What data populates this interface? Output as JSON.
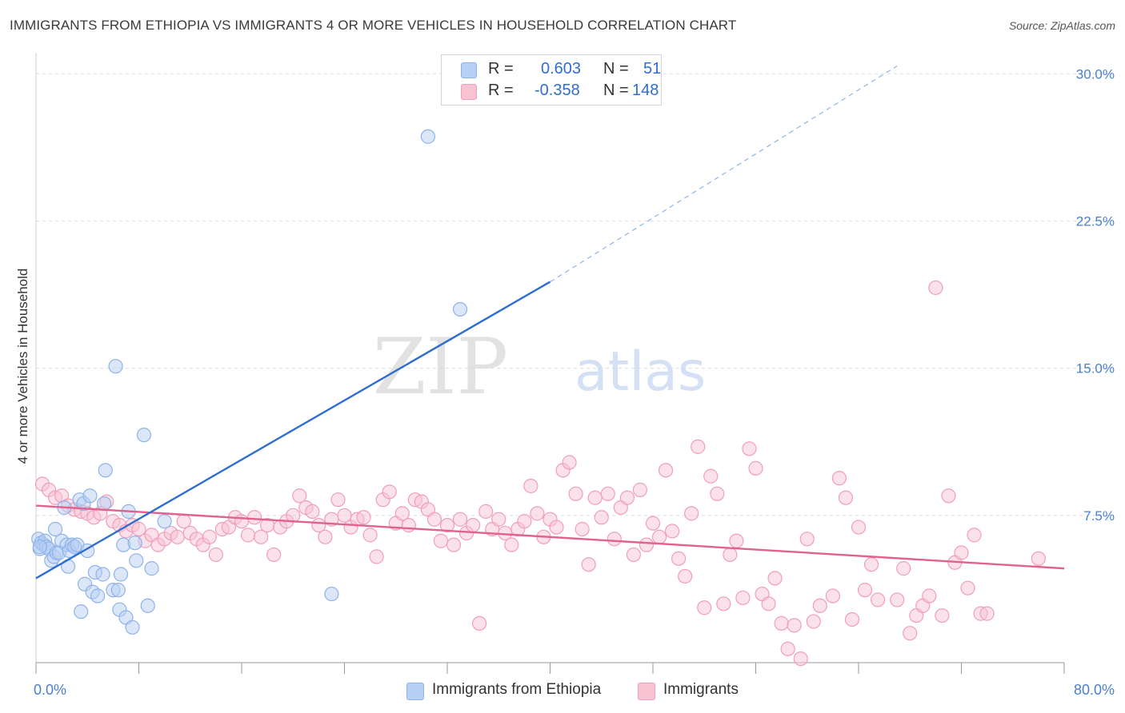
{
  "title": "IMMIGRANTS FROM ETHIOPIA VS IMMIGRANTS 4 OR MORE VEHICLES IN HOUSEHOLD CORRELATION CHART",
  "source": "Source: ZipAtlas.com",
  "watermark": {
    "zip": "ZIP",
    "atlas": "atlas"
  },
  "legend": {
    "rows": [
      {
        "r_label": "R =",
        "r_value": "0.603",
        "n_label": "N =",
        "n_value": "51"
      },
      {
        "r_label": "R =",
        "r_value": "-0.358",
        "n_label": "N =",
        "n_value": "148"
      }
    ]
  },
  "bottom_legend": [
    "Immigrants from Ethiopia",
    "Immigrants"
  ],
  "colors": {
    "blue_fill": "#b8d0f3",
    "blue_stroke": "#8fb3e8",
    "blue_line": "#2f6ed1",
    "pink_fill": "#f7c3d3",
    "pink_stroke": "#ef9fb9",
    "pink_line": "#e0628d",
    "grid": "#dcdcdc",
    "tick_label": "#4a7fd0"
  },
  "chart_data": {
    "type": "scatter",
    "title": "IMMIGRANTS FROM ETHIOPIA VS IMMIGRANTS 4 OR MORE VEHICLES IN HOUSEHOLD CORRELATION CHART",
    "xlabel": "",
    "ylabel": "4 or more Vehicles in Household",
    "xlim": [
      0,
      80
    ],
    "ylim": [
      0,
      30.5
    ],
    "x_tick_labels": [
      "0.0%",
      "80.0%"
    ],
    "y_ticks": [
      7.5,
      15.0,
      22.5,
      30.0
    ],
    "y_tick_labels": [
      "7.5%",
      "15.0%",
      "22.5%",
      "30.0%"
    ],
    "legend_position": "top-center",
    "grid": true,
    "series": [
      {
        "name": "Immigrants from Ethiopia",
        "color": "#8fb3e8",
        "trend": {
          "x": [
            0,
            40
          ],
          "y": [
            4.3,
            19.4
          ],
          "dashed_to": [
            67,
            30.4
          ]
        },
        "points": [
          [
            0.2,
            6.3
          ],
          [
            0.3,
            5.8
          ],
          [
            0.4,
            6.1
          ],
          [
            0.6,
            6.0
          ],
          [
            0.7,
            6.2
          ],
          [
            0.8,
            5.9
          ],
          [
            1.0,
            5.8
          ],
          [
            1.2,
            5.2
          ],
          [
            1.4,
            5.4
          ],
          [
            1.5,
            6.8
          ],
          [
            1.6,
            5.6
          ],
          [
            1.8,
            5.6
          ],
          [
            2.0,
            6.2
          ],
          [
            2.2,
            7.9
          ],
          [
            2.4,
            6.0
          ],
          [
            2.5,
            4.9
          ],
          [
            2.6,
            5.7
          ],
          [
            2.8,
            6.0
          ],
          [
            3.0,
            5.9
          ],
          [
            3.2,
            6.0
          ],
          [
            3.4,
            8.3
          ],
          [
            3.5,
            2.6
          ],
          [
            3.7,
            8.1
          ],
          [
            3.8,
            4.0
          ],
          [
            4.0,
            5.7
          ],
          [
            4.2,
            8.5
          ],
          [
            4.4,
            3.6
          ],
          [
            4.6,
            4.6
          ],
          [
            4.8,
            3.4
          ],
          [
            5.2,
            4.5
          ],
          [
            5.3,
            8.1
          ],
          [
            5.4,
            9.8
          ],
          [
            6.0,
            3.7
          ],
          [
            6.2,
            15.1
          ],
          [
            6.4,
            3.7
          ],
          [
            6.5,
            2.7
          ],
          [
            6.6,
            4.5
          ],
          [
            6.8,
            6.0
          ],
          [
            7.0,
            2.3
          ],
          [
            7.2,
            7.7
          ],
          [
            7.5,
            1.8
          ],
          [
            7.7,
            6.1
          ],
          [
            7.8,
            5.2
          ],
          [
            8.4,
            11.6
          ],
          [
            8.7,
            2.9
          ],
          [
            9.0,
            4.8
          ],
          [
            10.0,
            7.2
          ],
          [
            23.0,
            3.5
          ],
          [
            30.5,
            26.8
          ],
          [
            33.0,
            18.0
          ],
          [
            0.3,
            5.9
          ]
        ]
      },
      {
        "name": "Immigrants",
        "color": "#ef9fb9",
        "trend": {
          "x": [
            0,
            80
          ],
          "y": [
            8.0,
            4.8
          ]
        },
        "points": [
          [
            0.5,
            9.1
          ],
          [
            1.0,
            8.8
          ],
          [
            1.5,
            8.4
          ],
          [
            2.0,
            8.5
          ],
          [
            2.5,
            8.0
          ],
          [
            3.0,
            7.8
          ],
          [
            3.5,
            7.7
          ],
          [
            4.0,
            7.6
          ],
          [
            4.5,
            7.4
          ],
          [
            5.0,
            7.6
          ],
          [
            5.5,
            8.2
          ],
          [
            6.0,
            7.2
          ],
          [
            6.5,
            7.0
          ],
          [
            7.0,
            6.7
          ],
          [
            7.5,
            7.0
          ],
          [
            8.0,
            6.8
          ],
          [
            8.5,
            6.2
          ],
          [
            9.0,
            6.5
          ],
          [
            9.5,
            6.0
          ],
          [
            10.0,
            6.3
          ],
          [
            10.5,
            6.6
          ],
          [
            11.0,
            6.4
          ],
          [
            11.5,
            7.2
          ],
          [
            12.0,
            6.6
          ],
          [
            12.5,
            6.3
          ],
          [
            13.0,
            6.0
          ],
          [
            13.5,
            6.4
          ],
          [
            14.0,
            5.5
          ],
          [
            14.5,
            6.8
          ],
          [
            15.0,
            6.9
          ],
          [
            15.5,
            7.4
          ],
          [
            16.0,
            7.2
          ],
          [
            16.5,
            6.5
          ],
          [
            17.0,
            7.4
          ],
          [
            17.5,
            6.4
          ],
          [
            18.0,
            7.0
          ],
          [
            18.5,
            5.5
          ],
          [
            19.0,
            6.9
          ],
          [
            19.5,
            7.2
          ],
          [
            20.0,
            7.5
          ],
          [
            20.5,
            8.5
          ],
          [
            21.0,
            7.9
          ],
          [
            21.5,
            7.7
          ],
          [
            22.0,
            7.0
          ],
          [
            22.5,
            6.4
          ],
          [
            23.0,
            7.3
          ],
          [
            23.5,
            8.3
          ],
          [
            24.0,
            7.5
          ],
          [
            24.5,
            6.9
          ],
          [
            25.0,
            7.3
          ],
          [
            25.5,
            7.4
          ],
          [
            26.0,
            6.5
          ],
          [
            26.5,
            5.4
          ],
          [
            27.0,
            8.3
          ],
          [
            27.5,
            8.7
          ],
          [
            28.0,
            7.1
          ],
          [
            28.5,
            7.6
          ],
          [
            29.0,
            7.0
          ],
          [
            29.5,
            8.3
          ],
          [
            30.0,
            8.2
          ],
          [
            30.5,
            7.8
          ],
          [
            31.0,
            7.3
          ],
          [
            31.5,
            6.2
          ],
          [
            32.0,
            7.0
          ],
          [
            32.5,
            6.0
          ],
          [
            33.0,
            7.3
          ],
          [
            33.5,
            6.6
          ],
          [
            34.0,
            7.0
          ],
          [
            34.5,
            2.0
          ],
          [
            35.0,
            7.7
          ],
          [
            35.5,
            6.8
          ],
          [
            36.0,
            7.3
          ],
          [
            36.5,
            6.6
          ],
          [
            37.0,
            6.0
          ],
          [
            37.5,
            6.8
          ],
          [
            38.0,
            7.2
          ],
          [
            38.5,
            9.0
          ],
          [
            39.0,
            7.6
          ],
          [
            39.5,
            6.4
          ],
          [
            40.0,
            7.3
          ],
          [
            40.5,
            6.9
          ],
          [
            41.0,
            9.8
          ],
          [
            41.5,
            10.2
          ],
          [
            42.0,
            8.6
          ],
          [
            42.5,
            6.8
          ],
          [
            43.0,
            5.0
          ],
          [
            43.5,
            8.4
          ],
          [
            44.0,
            7.4
          ],
          [
            44.5,
            8.6
          ],
          [
            45.0,
            6.3
          ],
          [
            45.5,
            7.9
          ],
          [
            46.0,
            8.4
          ],
          [
            46.5,
            5.5
          ],
          [
            47.0,
            8.8
          ],
          [
            47.5,
            6.0
          ],
          [
            48.0,
            7.1
          ],
          [
            48.5,
            6.4
          ],
          [
            49.0,
            9.8
          ],
          [
            49.5,
            6.7
          ],
          [
            50.0,
            5.3
          ],
          [
            50.5,
            4.4
          ],
          [
            51.0,
            7.6
          ],
          [
            51.5,
            11.0
          ],
          [
            52.0,
            2.8
          ],
          [
            52.5,
            9.5
          ],
          [
            53.0,
            8.6
          ],
          [
            53.5,
            3.0
          ],
          [
            54.0,
            5.5
          ],
          [
            54.5,
            6.2
          ],
          [
            55.0,
            3.3
          ],
          [
            55.5,
            10.9
          ],
          [
            56.0,
            9.9
          ],
          [
            56.5,
            3.5
          ],
          [
            57.0,
            3.0
          ],
          [
            57.5,
            4.3
          ],
          [
            58.0,
            2.0
          ],
          [
            58.5,
            0.7
          ],
          [
            59.0,
            1.9
          ],
          [
            59.5,
            0.2
          ],
          [
            60.0,
            6.3
          ],
          [
            60.5,
            2.1
          ],
          [
            61.0,
            2.9
          ],
          [
            62.0,
            3.4
          ],
          [
            62.5,
            9.4
          ],
          [
            63.0,
            8.4
          ],
          [
            63.5,
            2.2
          ],
          [
            64.0,
            6.9
          ],
          [
            64.5,
            3.7
          ],
          [
            65.0,
            5.0
          ],
          [
            65.5,
            3.2
          ],
          [
            67.0,
            3.2
          ],
          [
            67.5,
            4.8
          ],
          [
            68.0,
            1.5
          ],
          [
            68.5,
            2.4
          ],
          [
            69.0,
            2.9
          ],
          [
            69.5,
            3.4
          ],
          [
            70.0,
            19.1
          ],
          [
            70.5,
            2.4
          ],
          [
            71.0,
            8.5
          ],
          [
            71.5,
            5.1
          ],
          [
            72.0,
            5.6
          ],
          [
            72.5,
            3.8
          ],
          [
            73.0,
            6.5
          ],
          [
            73.5,
            2.5
          ],
          [
            78.0,
            5.3
          ],
          [
            74.0,
            2.5
          ]
        ]
      }
    ]
  }
}
